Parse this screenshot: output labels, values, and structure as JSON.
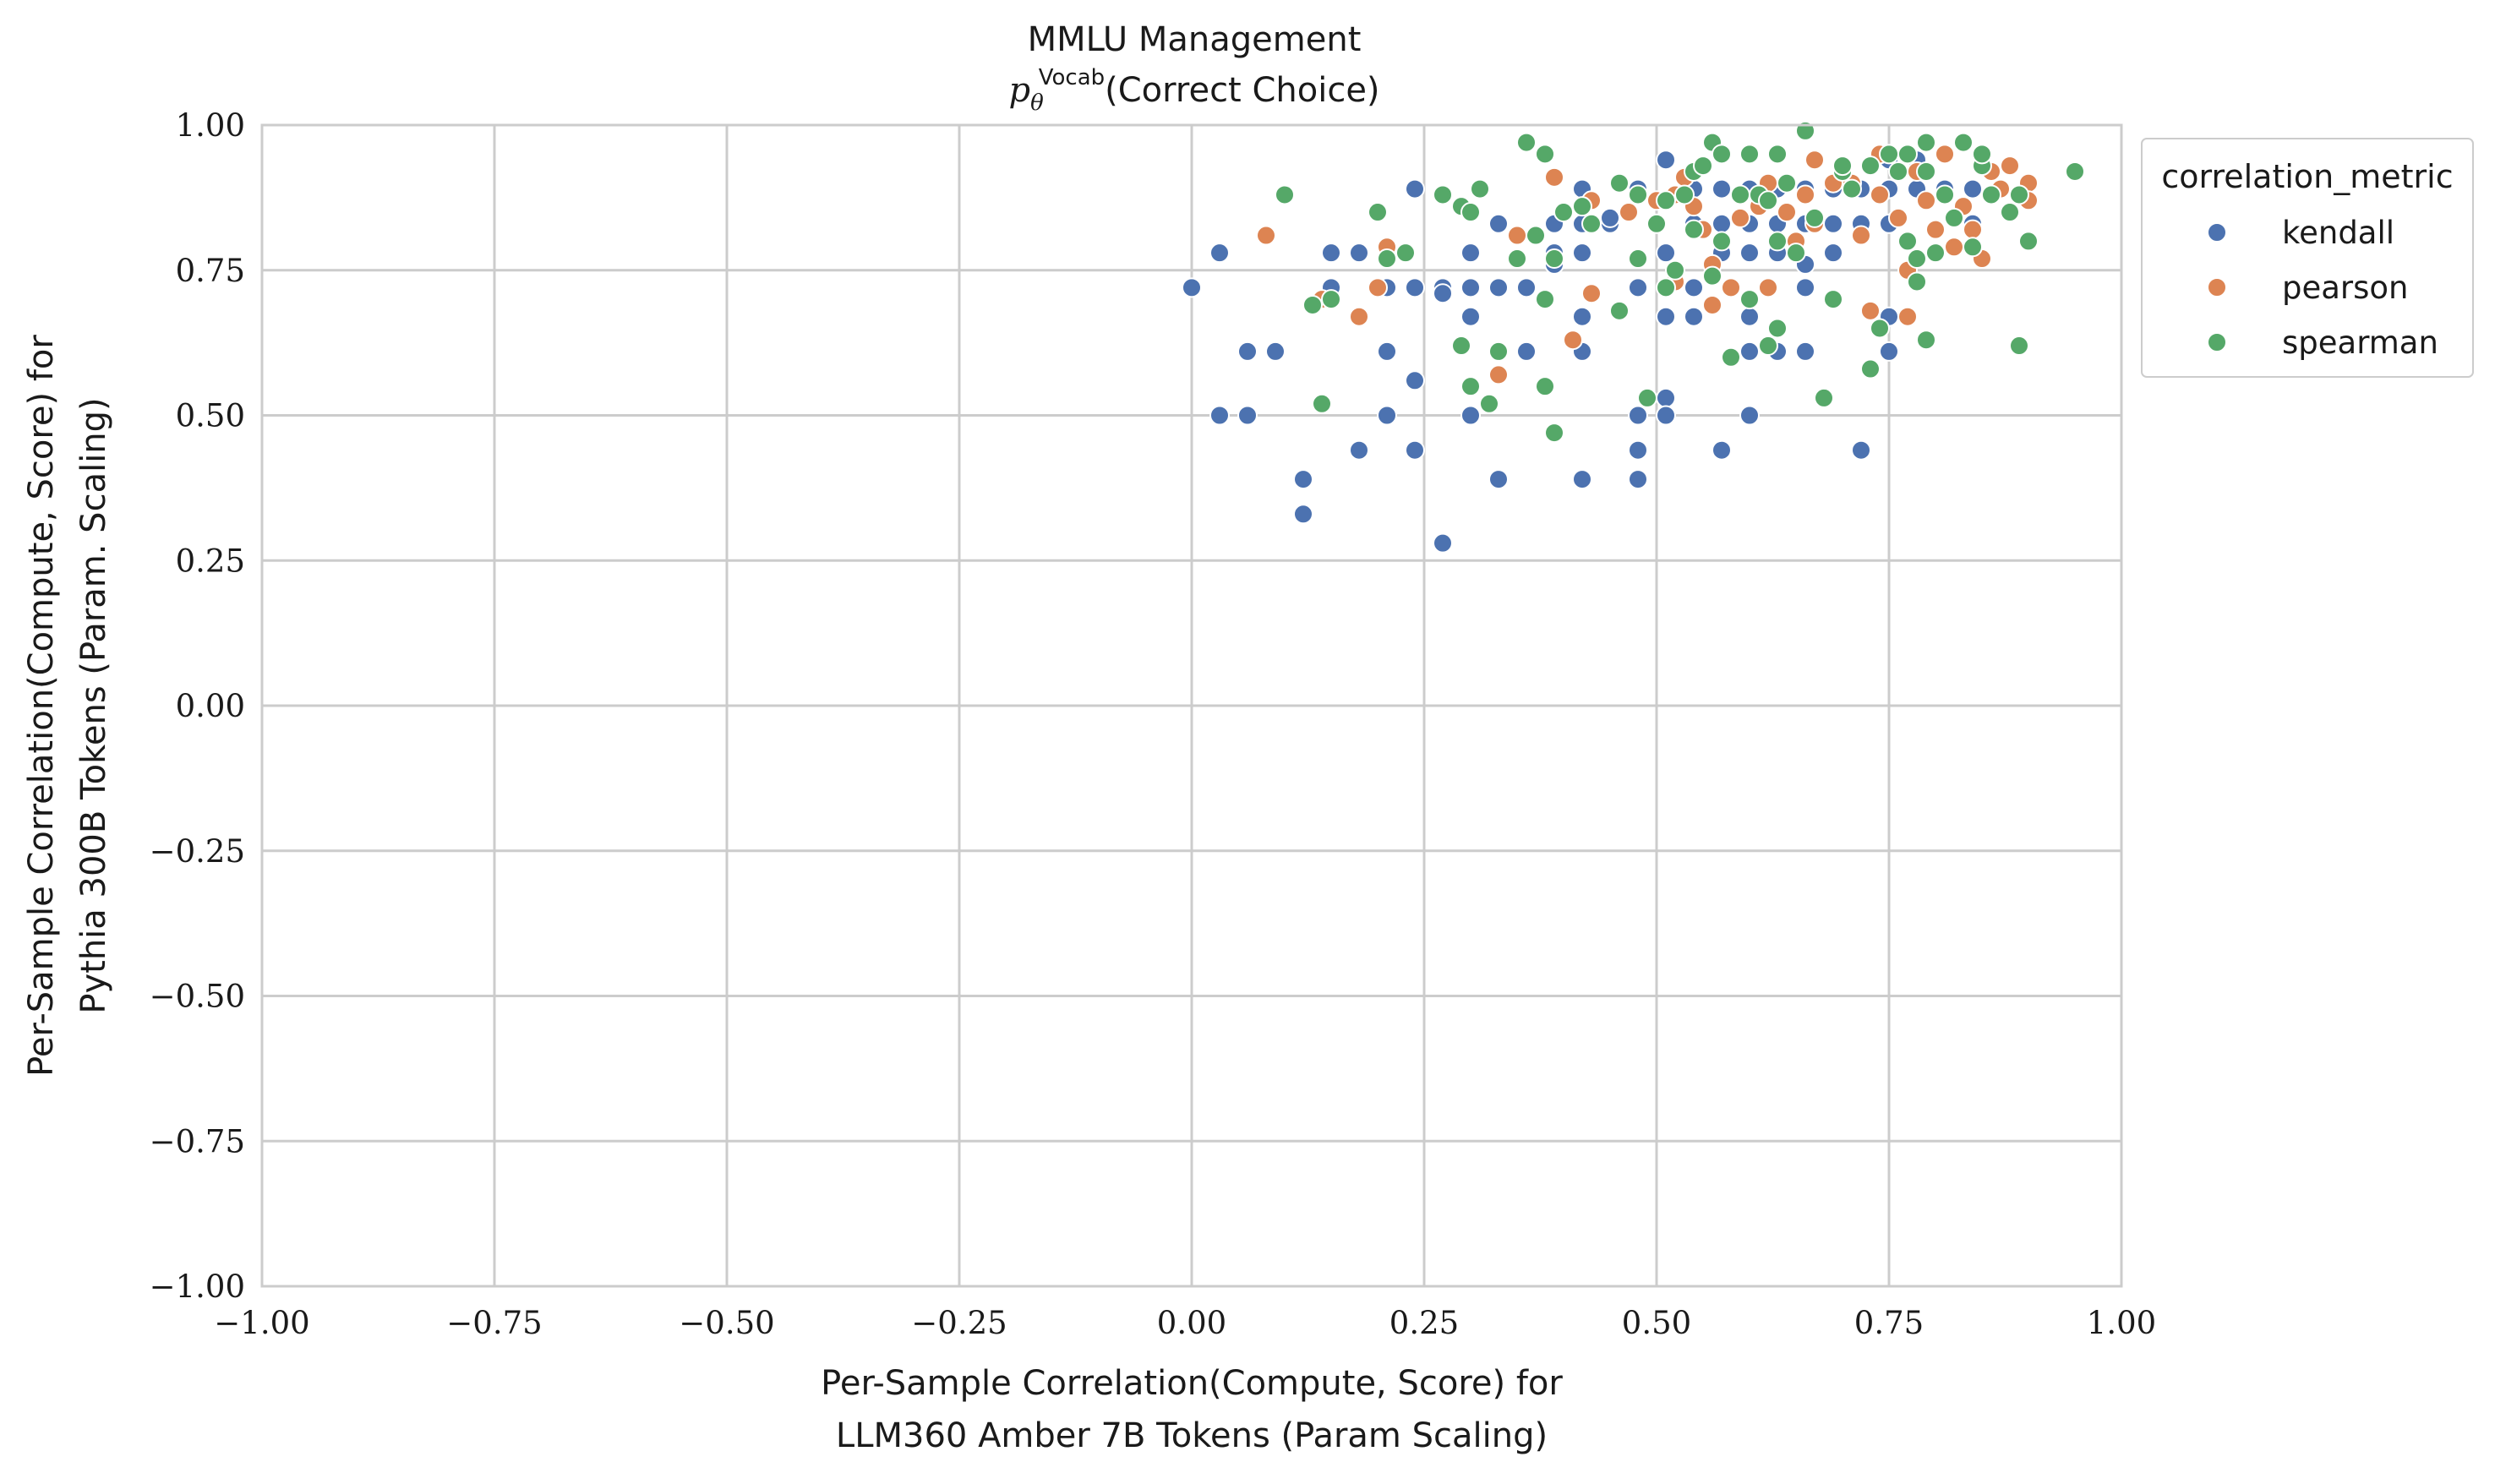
{
  "chart_data": {
    "type": "scatter",
    "title": "MMLU Management",
    "subtitle_prefix": "p",
    "subtitle_sub": "θ",
    "subtitle_sup": "Vocab",
    "subtitle_rest": "(Correct Choice)",
    "xlabel_line1": "Per-Sample Correlation(Compute, Score) for",
    "xlabel_line2": "LLM360 Amber 7B Tokens (Param Scaling)",
    "ylabel_line1": "Per-Sample Correlation(Compute, Score) for",
    "ylabel_line2": "Pythia 300B Tokens (Param. Scaling)",
    "xlim": [
      -1.0,
      1.0
    ],
    "ylim": [
      -1.0,
      1.0
    ],
    "xticks": [
      "−1.00",
      "−0.75",
      "−0.50",
      "−0.25",
      "0.00",
      "0.25",
      "0.50",
      "0.75",
      "1.00"
    ],
    "yticks": [
      "−1.00",
      "−0.75",
      "−0.50",
      "−0.25",
      "0.00",
      "0.25",
      "0.50",
      "0.75",
      "1.00"
    ],
    "grid": true,
    "legend_title": "correlation_metric",
    "legend_placement": "outside-right-top",
    "series": [
      {
        "name": "kendall",
        "color": "#4c72b0",
        "points": [
          [
            0.0,
            0.72
          ],
          [
            0.03,
            0.78
          ],
          [
            0.03,
            0.5
          ],
          [
            0.06,
            0.61
          ],
          [
            0.06,
            0.5
          ],
          [
            0.09,
            0.61
          ],
          [
            0.12,
            0.39
          ],
          [
            0.12,
            0.33
          ],
          [
            0.15,
            0.78
          ],
          [
            0.15,
            0.72
          ],
          [
            0.18,
            0.78
          ],
          [
            0.18,
            0.44
          ],
          [
            0.21,
            0.72
          ],
          [
            0.21,
            0.61
          ],
          [
            0.21,
            0.5
          ],
          [
            0.24,
            0.89
          ],
          [
            0.24,
            0.72
          ],
          [
            0.24,
            0.56
          ],
          [
            0.24,
            0.44
          ],
          [
            0.27,
            0.72
          ],
          [
            0.27,
            0.28
          ],
          [
            0.3,
            0.78
          ],
          [
            0.3,
            0.72
          ],
          [
            0.3,
            0.67
          ],
          [
            0.3,
            0.5
          ],
          [
            0.33,
            0.83
          ],
          [
            0.33,
            0.72
          ],
          [
            0.33,
            0.61
          ],
          [
            0.33,
            0.39
          ],
          [
            0.36,
            0.72
          ],
          [
            0.36,
            0.61
          ],
          [
            0.39,
            0.83
          ],
          [
            0.39,
            0.78
          ],
          [
            0.42,
            0.89
          ],
          [
            0.42,
            0.83
          ],
          [
            0.42,
            0.78
          ],
          [
            0.42,
            0.67
          ],
          [
            0.42,
            0.61
          ],
          [
            0.42,
            0.39
          ],
          [
            0.45,
            0.83
          ],
          [
            0.48,
            0.89
          ],
          [
            0.48,
            0.72
          ],
          [
            0.48,
            0.5
          ],
          [
            0.48,
            0.44
          ],
          [
            0.48,
            0.39
          ],
          [
            0.51,
            0.94
          ],
          [
            0.51,
            0.78
          ],
          [
            0.51,
            0.67
          ],
          [
            0.51,
            0.53
          ],
          [
            0.51,
            0.5
          ],
          [
            0.54,
            0.89
          ],
          [
            0.54,
            0.83
          ],
          [
            0.54,
            0.72
          ],
          [
            0.54,
            0.67
          ],
          [
            0.57,
            0.89
          ],
          [
            0.57,
            0.83
          ],
          [
            0.57,
            0.78
          ],
          [
            0.57,
            0.44
          ],
          [
            0.6,
            0.89
          ],
          [
            0.6,
            0.83
          ],
          [
            0.6,
            0.78
          ],
          [
            0.6,
            0.67
          ],
          [
            0.6,
            0.61
          ],
          [
            0.6,
            0.5
          ],
          [
            0.63,
            0.89
          ],
          [
            0.63,
            0.83
          ],
          [
            0.63,
            0.78
          ],
          [
            0.63,
            0.61
          ],
          [
            0.66,
            0.89
          ],
          [
            0.66,
            0.83
          ],
          [
            0.66,
            0.72
          ],
          [
            0.66,
            0.61
          ],
          [
            0.69,
            0.89
          ],
          [
            0.69,
            0.83
          ],
          [
            0.69,
            0.78
          ],
          [
            0.72,
            0.89
          ],
          [
            0.72,
            0.83
          ],
          [
            0.72,
            0.44
          ],
          [
            0.75,
            0.94
          ],
          [
            0.75,
            0.89
          ],
          [
            0.75,
            0.83
          ],
          [
            0.75,
            0.67
          ],
          [
            0.75,
            0.61
          ],
          [
            0.78,
            0.94
          ],
          [
            0.78,
            0.89
          ],
          [
            0.81,
            0.89
          ],
          [
            0.84,
            0.89
          ],
          [
            0.84,
            0.83
          ],
          [
            0.87,
            0.89
          ],
          [
            0.27,
            0.71
          ],
          [
            0.39,
            0.76
          ],
          [
            0.45,
            0.84
          ],
          [
            0.66,
            0.76
          ]
        ]
      },
      {
        "name": "pearson",
        "color": "#dd8452",
        "points": [
          [
            0.08,
            0.81
          ],
          [
            0.14,
            0.7
          ],
          [
            0.18,
            0.67
          ],
          [
            0.2,
            0.72
          ],
          [
            0.21,
            0.79
          ],
          [
            0.33,
            0.57
          ],
          [
            0.35,
            0.81
          ],
          [
            0.39,
            0.91
          ],
          [
            0.41,
            0.63
          ],
          [
            0.43,
            0.71
          ],
          [
            0.43,
            0.87
          ],
          [
            0.47,
            0.85
          ],
          [
            0.5,
            0.87
          ],
          [
            0.52,
            0.73
          ],
          [
            0.53,
            0.91
          ],
          [
            0.54,
            0.86
          ],
          [
            0.56,
            0.76
          ],
          [
            0.56,
            0.69
          ],
          [
            0.58,
            0.72
          ],
          [
            0.59,
            0.84
          ],
          [
            0.61,
            0.86
          ],
          [
            0.62,
            0.72
          ],
          [
            0.62,
            0.9
          ],
          [
            0.64,
            0.85
          ],
          [
            0.66,
            0.88
          ],
          [
            0.67,
            0.83
          ],
          [
            0.67,
            0.94
          ],
          [
            0.69,
            0.9
          ],
          [
            0.71,
            0.9
          ],
          [
            0.72,
            0.81
          ],
          [
            0.73,
            0.68
          ],
          [
            0.74,
            0.95
          ],
          [
            0.74,
            0.88
          ],
          [
            0.76,
            0.84
          ],
          [
            0.77,
            0.67
          ],
          [
            0.77,
            0.75
          ],
          [
            0.78,
            0.92
          ],
          [
            0.79,
            0.87
          ],
          [
            0.8,
            0.82
          ],
          [
            0.81,
            0.95
          ],
          [
            0.82,
            0.79
          ],
          [
            0.83,
            0.86
          ],
          [
            0.84,
            0.82
          ],
          [
            0.85,
            0.77
          ],
          [
            0.86,
            0.92
          ],
          [
            0.87,
            0.89
          ],
          [
            0.88,
            0.93
          ],
          [
            0.9,
            0.9
          ],
          [
            0.9,
            0.87
          ],
          [
            0.52,
            0.88
          ],
          [
            0.65,
            0.8
          ],
          [
            0.55,
            0.82
          ]
        ]
      },
      {
        "name": "spearman",
        "color": "#55a868",
        "points": [
          [
            0.1,
            0.88
          ],
          [
            0.13,
            0.69
          ],
          [
            0.14,
            0.52
          ],
          [
            0.15,
            0.7
          ],
          [
            0.2,
            0.85
          ],
          [
            0.21,
            0.77
          ],
          [
            0.23,
            0.78
          ],
          [
            0.27,
            0.88
          ],
          [
            0.29,
            0.62
          ],
          [
            0.29,
            0.86
          ],
          [
            0.3,
            0.55
          ],
          [
            0.3,
            0.85
          ],
          [
            0.31,
            0.89
          ],
          [
            0.32,
            0.52
          ],
          [
            0.33,
            0.61
          ],
          [
            0.35,
            0.77
          ],
          [
            0.36,
            0.97
          ],
          [
            0.37,
            0.81
          ],
          [
            0.38,
            0.95
          ],
          [
            0.38,
            0.55
          ],
          [
            0.38,
            0.7
          ],
          [
            0.39,
            0.47
          ],
          [
            0.39,
            0.77
          ],
          [
            0.4,
            0.85
          ],
          [
            0.42,
            0.86
          ],
          [
            0.43,
            0.83
          ],
          [
            0.46,
            0.68
          ],
          [
            0.46,
            0.9
          ],
          [
            0.48,
            0.77
          ],
          [
            0.48,
            0.88
          ],
          [
            0.49,
            0.53
          ],
          [
            0.5,
            0.83
          ],
          [
            0.51,
            0.72
          ],
          [
            0.51,
            0.87
          ],
          [
            0.52,
            0.75
          ],
          [
            0.53,
            0.88
          ],
          [
            0.54,
            0.82
          ],
          [
            0.54,
            0.92
          ],
          [
            0.55,
            0.93
          ],
          [
            0.56,
            0.74
          ],
          [
            0.56,
            0.97
          ],
          [
            0.57,
            0.8
          ],
          [
            0.58,
            0.6
          ],
          [
            0.59,
            0.88
          ],
          [
            0.6,
            0.7
          ],
          [
            0.6,
            0.95
          ],
          [
            0.61,
            0.88
          ],
          [
            0.62,
            0.87
          ],
          [
            0.62,
            0.62
          ],
          [
            0.63,
            0.8
          ],
          [
            0.63,
            0.65
          ],
          [
            0.64,
            0.9
          ],
          [
            0.65,
            0.78
          ],
          [
            0.66,
            0.99
          ],
          [
            0.67,
            0.84
          ],
          [
            0.68,
            0.53
          ],
          [
            0.69,
            0.7
          ],
          [
            0.7,
            0.92
          ],
          [
            0.71,
            0.89
          ],
          [
            0.73,
            0.93
          ],
          [
            0.73,
            0.58
          ],
          [
            0.74,
            0.65
          ],
          [
            0.75,
            0.95
          ],
          [
            0.76,
            0.92
          ],
          [
            0.77,
            0.95
          ],
          [
            0.77,
            0.8
          ],
          [
            0.78,
            0.73
          ],
          [
            0.78,
            0.77
          ],
          [
            0.79,
            0.63
          ],
          [
            0.79,
            0.97
          ],
          [
            0.8,
            0.78
          ],
          [
            0.81,
            0.88
          ],
          [
            0.82,
            0.84
          ],
          [
            0.83,
            0.97
          ],
          [
            0.84,
            0.79
          ],
          [
            0.85,
            0.93
          ],
          [
            0.86,
            0.88
          ],
          [
            0.88,
            0.85
          ],
          [
            0.89,
            0.62
          ],
          [
            0.89,
            0.88
          ],
          [
            0.9,
            0.8
          ],
          [
            0.95,
            0.92
          ],
          [
            0.63,
            0.95
          ],
          [
            0.7,
            0.93
          ],
          [
            0.57,
            0.95
          ],
          [
            0.85,
            0.95
          ],
          [
            0.79,
            0.92
          ]
        ]
      }
    ]
  }
}
